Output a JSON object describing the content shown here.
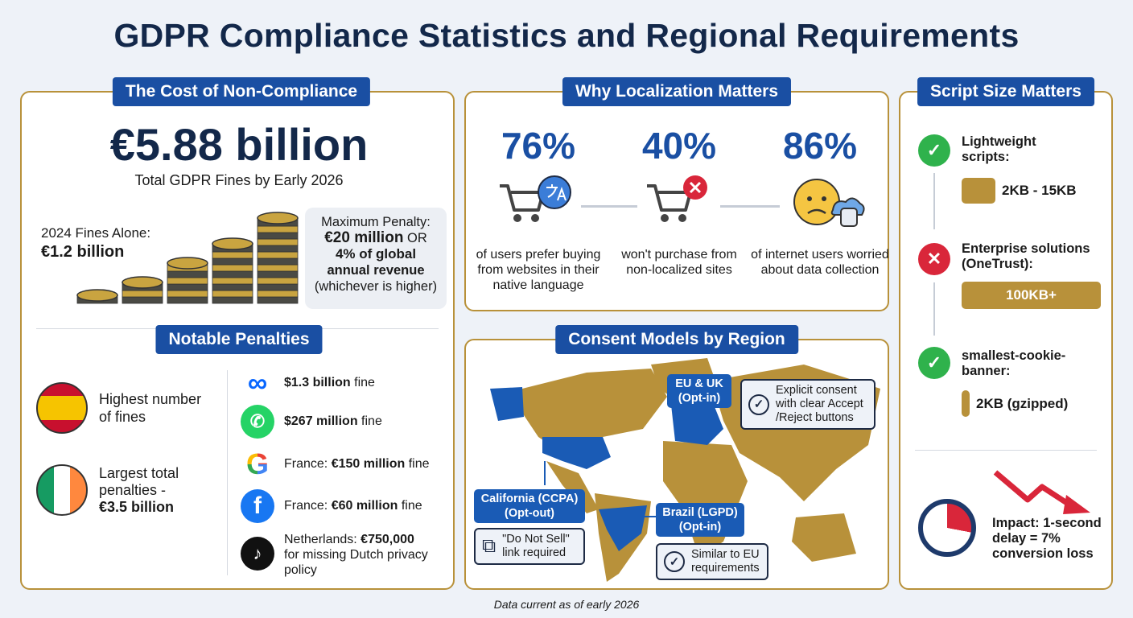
{
  "title": "GDPR Compliance Statistics and Regional Requirements",
  "colors": {
    "accent_blue": "#1a4fa3",
    "gold": "#b8913a",
    "navy": "#13284a",
    "green": "#2fb24c",
    "red": "#d9263a"
  },
  "cost": {
    "header": "The Cost of Non-Compliance",
    "total": "€5.88 billion",
    "total_caption": "Total GDPR Fines by Early 2026",
    "fines_2024_label": "2024 Fines Alone:",
    "fines_2024_value": "€1.2 billion",
    "max_label": "Maximum Penalty:",
    "max_value": "€20 million",
    "max_or": "OR",
    "max_pct": "4% of global",
    "max_pct2": "annual revenue",
    "max_note": "(whichever is higher)",
    "coins_icon": "coin-stacks-icon"
  },
  "penalties": {
    "header": "Notable Penalties",
    "countries": [
      {
        "icon": "spain-flag-icon",
        "text": "Highest number of fines"
      },
      {
        "icon": "ireland-flag-icon",
        "text": "Largest total penalties -",
        "value": "€3.5 billion"
      }
    ],
    "companies": [
      {
        "icon": "meta-logo-icon",
        "bold": "$1.3 billion",
        "rest": " fine"
      },
      {
        "icon": "whatsapp-logo-icon",
        "bold": "$267 million",
        "rest": " fine"
      },
      {
        "icon": "google-logo-icon",
        "pre": "France: ",
        "bold": "€150 million",
        "rest": " fine"
      },
      {
        "icon": "facebook-logo-icon",
        "pre": "France: ",
        "bold": "€60 million",
        "rest": " fine"
      },
      {
        "icon": "tiktok-logo-icon",
        "pre": "Netherlands: ",
        "bold": "€750,000",
        "rest": "for missing Dutch privacy policy"
      }
    ]
  },
  "localization": {
    "header": "Why Localization Matters",
    "stats": [
      {
        "value": "76%",
        "icon": "cart-translate-icon",
        "text": "of users prefer buying from websites in their native language"
      },
      {
        "value": "40%",
        "icon": "cart-x-icon",
        "text": "won't purchase from non-localized sites"
      },
      {
        "value": "86%",
        "icon": "worried-face-database-icon",
        "text": "of internet users worried about data collection"
      }
    ]
  },
  "consent": {
    "header": "Consent Models by Region",
    "eu_tag": "EU & UK (Opt-in)",
    "eu_note": "Explicit consent with clear Accept /Reject buttons",
    "ca_tag": "California (CCPA) (Opt-out)",
    "ca_note": "\"Do Not Sell\" link required",
    "br_tag": "Brazil (LGPD) (Opt-in)",
    "br_note": "Similar to EU requirements"
  },
  "script": {
    "header": "Script Size Matters",
    "items": [
      {
        "status": "check-icon",
        "label": "Lightweight scripts:",
        "size": "2KB - 15KB"
      },
      {
        "status": "x-icon",
        "label": "Enterprise solutions (OneTrust):",
        "size": "100KB+"
      },
      {
        "status": "check-icon",
        "label": "smallest-cookie-banner:",
        "size": "2KB (gzipped)"
      }
    ],
    "impact": "Impact: 1-second delay = 7% conversion loss"
  },
  "footer": "Data current as of early 2026"
}
